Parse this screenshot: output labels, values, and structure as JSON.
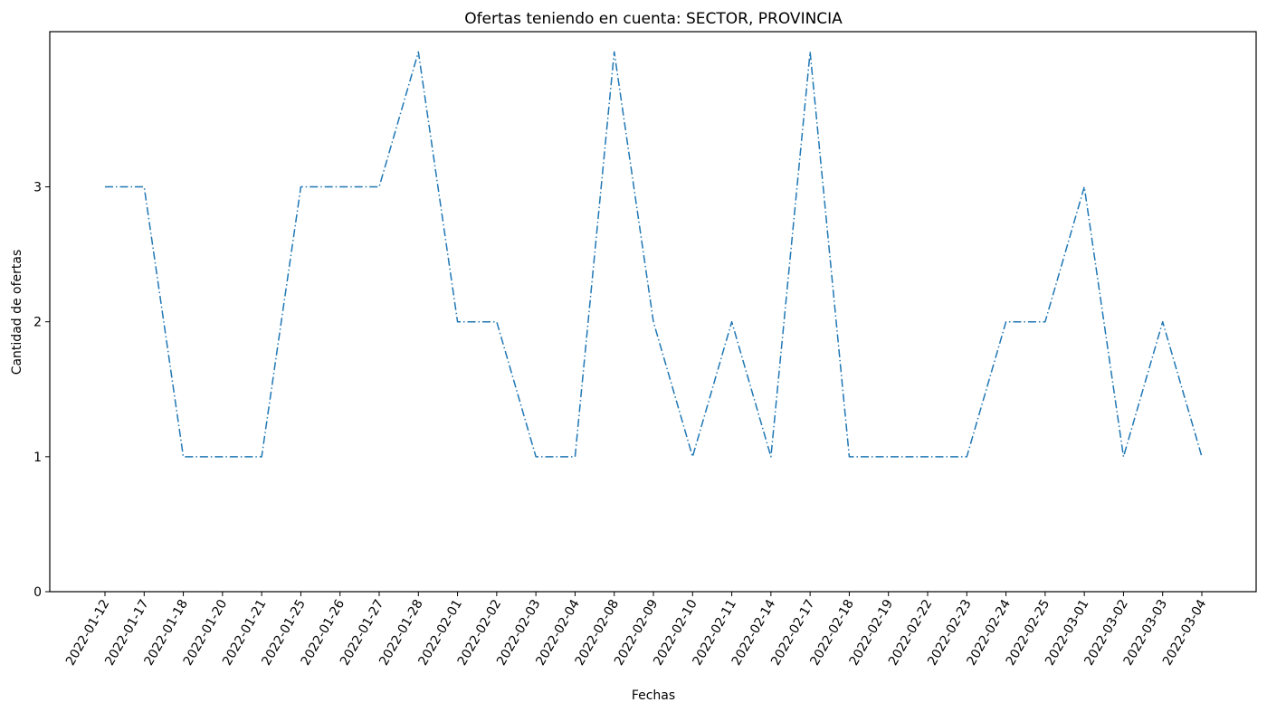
{
  "chart_data": {
    "type": "line",
    "title": "Ofertas teniendo en cuenta: SECTOR, PROVINCIA",
    "xlabel": "Fechas",
    "ylabel": "Cantidad de ofertas",
    "categories": [
      "2022-01-12",
      "2022-01-17",
      "2022-01-18",
      "2022-01-20",
      "2022-01-21",
      "2022-01-25",
      "2022-01-26",
      "2022-01-27",
      "2022-01-28",
      "2022-02-01",
      "2022-02-02",
      "2022-02-03",
      "2022-02-04",
      "2022-02-08",
      "2022-02-09",
      "2022-02-10",
      "2022-02-11",
      "2022-02-14",
      "2022-02-17",
      "2022-02-18",
      "2022-02-19",
      "2022-02-22",
      "2022-02-23",
      "2022-02-24",
      "2022-02-25",
      "2022-03-01",
      "2022-03-02",
      "2022-03-03",
      "2022-03-04"
    ],
    "series": [
      {
        "values": [
          3,
          3,
          1,
          1,
          1,
          3,
          3,
          3,
          4,
          2,
          2,
          1,
          1,
          4,
          2,
          1,
          2,
          1,
          4,
          1,
          1,
          1,
          1,
          2,
          2,
          3,
          1,
          2,
          1
        ]
      }
    ],
    "yticks": [
      "0",
      "1",
      "2",
      "3"
    ],
    "ylim": [
      0,
      4.15
    ],
    "grid": false,
    "line_style": "dashdot",
    "line_color": "#1f77b4"
  }
}
